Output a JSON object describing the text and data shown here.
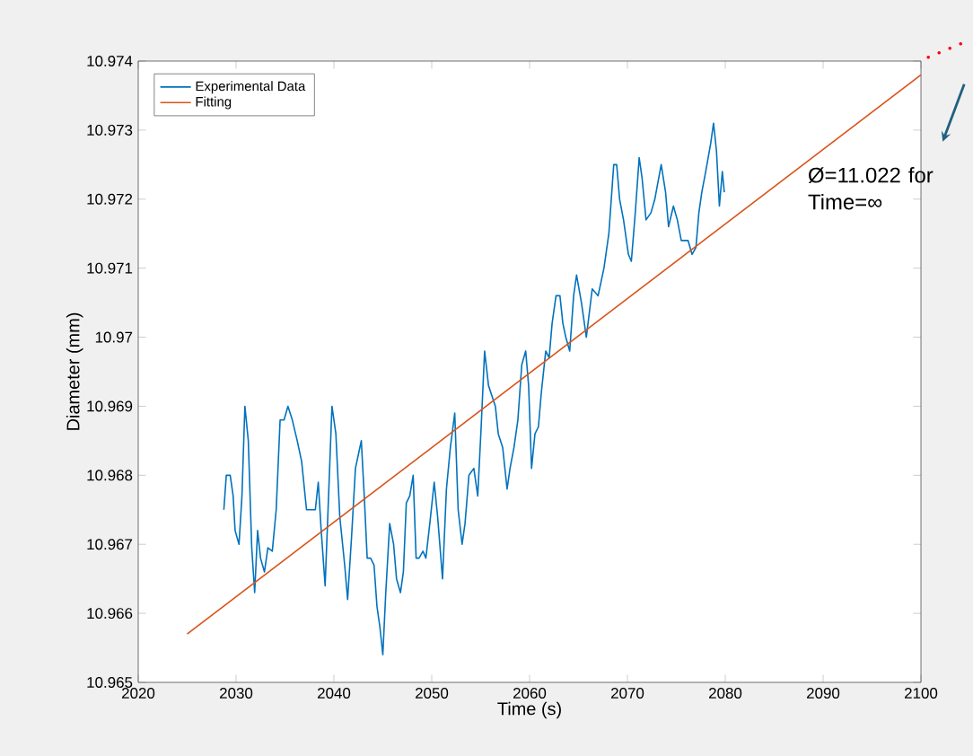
{
  "chart_data": {
    "type": "line",
    "xlabel": "Time (s)",
    "ylabel": "Diameter (mm)",
    "xlim": [
      2020,
      2100
    ],
    "xticks": [
      2020,
      2030,
      2040,
      2050,
      2060,
      2070,
      2080,
      2090,
      2100
    ],
    "ylim": [
      10.965,
      10.974
    ],
    "yticks": [
      10.965,
      10.966,
      10.967,
      10.968,
      10.969,
      10.97,
      10.971,
      10.972,
      10.973,
      10.974
    ],
    "legend": "top left",
    "marker": "none",
    "line_style": "solid",
    "grid": false,
    "annotations": [
      "Ø=11.022 for Time=∞"
    ],
    "series": [
      {
        "name": "Experimental Data",
        "color": "#0072bd",
        "x": [
          2028.75,
          2029.0,
          2029.4,
          2029.7,
          2029.9,
          2030.3,
          2030.6,
          2030.9,
          2031.25,
          2031.6,
          2031.9,
          2032.2,
          2032.5,
          2032.9,
          2033.25,
          2033.7,
          2034.1,
          2034.5,
          2034.9,
          2035.3,
          2035.75,
          2036.25,
          2036.7,
          2037.2,
          2037.6,
          2038.1,
          2038.4,
          2038.7,
          2039.1,
          2039.4,
          2039.8,
          2040.2,
          2040.6,
          2041.1,
          2041.4,
          2041.8,
          2042.2,
          2042.5,
          2042.8,
          2043.1,
          2043.4,
          2043.75,
          2044.1,
          2044.4,
          2044.7,
          2045.0,
          2045.3,
          2045.7,
          2046.1,
          2046.4,
          2046.8,
          2047.1,
          2047.4,
          2047.75,
          2048.1,
          2048.4,
          2048.7,
          2049.1,
          2049.4,
          2049.8,
          2050.25,
          2050.6,
          2051.1,
          2051.5,
          2051.9,
          2052.35,
          2052.7,
          2053.1,
          2053.4,
          2053.8,
          2054.3,
          2054.7,
          2055.05,
          2055.4,
          2055.8,
          2056.5,
          2056.8,
          2057.25,
          2057.7,
          2058.0,
          2058.4,
          2058.8,
          2059.2,
          2059.6,
          2059.9,
          2060.2,
          2060.55,
          2060.9,
          2061.2,
          2061.65,
          2062.0,
          2062.3,
          2062.7,
          2063.1,
          2063.4,
          2063.7,
          2064.1,
          2064.5,
          2064.8,
          2065.3,
          2065.8,
          2066.4,
          2067.0,
          2067.6,
          2068.1,
          2068.6,
          2068.9,
          2069.2,
          2069.6,
          2070.1,
          2070.4,
          2070.8,
          2071.2,
          2071.5,
          2071.9,
          2072.4,
          2072.8,
          2073.45,
          2073.9,
          2074.2,
          2074.7,
          2075.1,
          2075.5,
          2075.9,
          2076.2,
          2076.6,
          2077.0,
          2077.3,
          2077.6,
          2078.0,
          2078.5,
          2078.8,
          2079.1,
          2079.4,
          2079.7,
          2079.9
        ],
        "values": [
          10.9675,
          10.968,
          10.968,
          10.9677,
          10.9672,
          10.967,
          10.9677,
          10.969,
          10.9685,
          10.96695,
          10.9663,
          10.9672,
          10.9668,
          10.9666,
          10.96695,
          10.9669,
          10.9675,
          10.9688,
          10.9688,
          10.969,
          10.9688,
          10.9685,
          10.9682,
          10.9675,
          10.9675,
          10.9675,
          10.9679,
          10.9672,
          10.9664,
          10.9675,
          10.969,
          10.9686,
          10.9674,
          10.9667,
          10.9662,
          10.9671,
          10.9681,
          10.9683,
          10.9685,
          10.9677,
          10.9668,
          10.9668,
          10.9667,
          10.9661,
          10.9658,
          10.9654,
          10.9663,
          10.9673,
          10.967,
          10.9665,
          10.9663,
          10.9666,
          10.9676,
          10.9677,
          10.968,
          10.9668,
          10.9668,
          10.9669,
          10.9668,
          10.9673,
          10.9679,
          10.9674,
          10.9665,
          10.9678,
          10.9684,
          10.9689,
          10.9675,
          10.967,
          10.9673,
          10.968,
          10.9681,
          10.9677,
          10.9687,
          10.9698,
          10.9693,
          10.969,
          10.9686,
          10.9684,
          10.9678,
          10.9681,
          10.9684,
          10.9688,
          10.9696,
          10.9698,
          10.9693,
          10.9681,
          10.9686,
          10.9687,
          10.9692,
          10.9698,
          10.9697,
          10.9702,
          10.9706,
          10.9706,
          10.9702,
          10.97,
          10.9698,
          10.9706,
          10.9709,
          10.9705,
          10.97,
          10.9707,
          10.9706,
          10.971,
          10.9715,
          10.9725,
          10.9725,
          10.972,
          10.9717,
          10.9712,
          10.9711,
          10.9718,
          10.9726,
          10.9723,
          10.9717,
          10.9718,
          10.972,
          10.9725,
          10.9721,
          10.9716,
          10.9719,
          10.9717,
          10.9714,
          10.9714,
          10.9714,
          10.9712,
          10.9713,
          10.9718,
          10.9721,
          10.9724,
          10.9728,
          10.9731,
          10.9727,
          10.9719,
          10.9724,
          10.9721
        ]
      },
      {
        "name": "Fitting",
        "color": "#d95319",
        "x": [
          2025,
          2100
        ],
        "values": [
          10.9657,
          10.9738
        ]
      }
    ]
  }
}
